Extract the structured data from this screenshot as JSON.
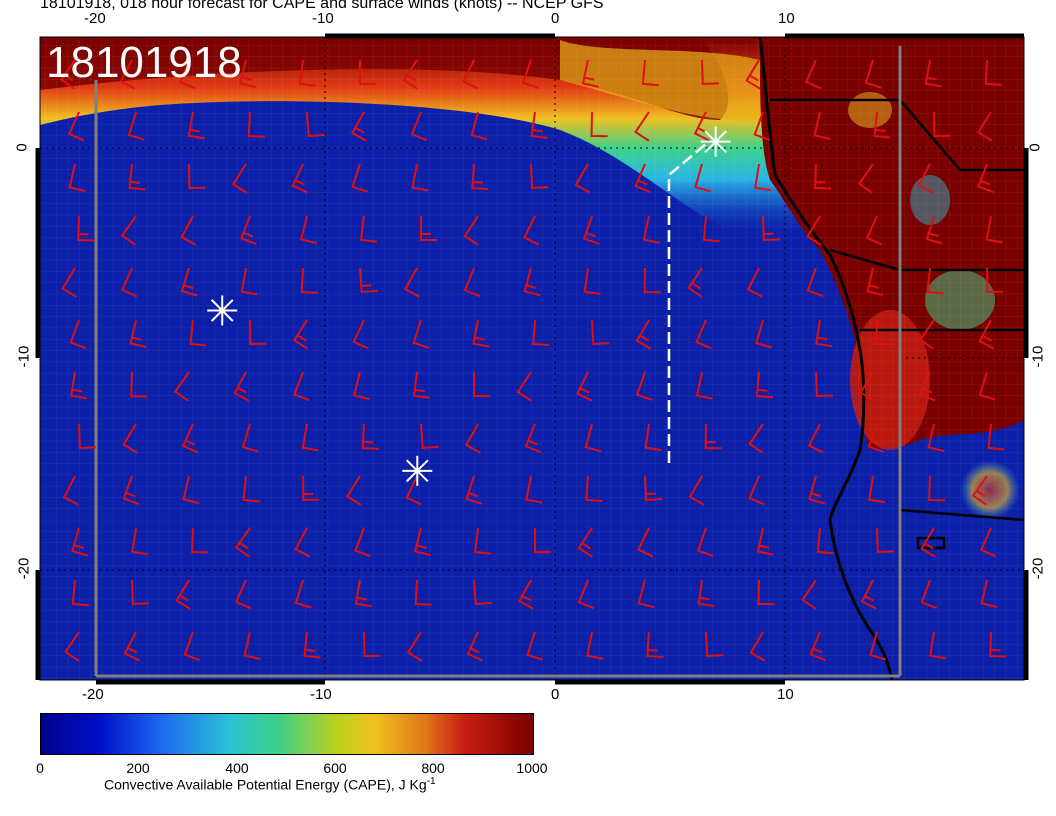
{
  "title": "18101918, 018 hour forecast for CAPE and surface winds (knots) -- NCEP GFS",
  "timestamp_label": "18101918",
  "x_ticks_top": [
    "-20",
    "-10",
    "0",
    "10"
  ],
  "x_ticks_bottom": [
    "-20",
    "-10",
    "0",
    "10"
  ],
  "y_ticks_left": [
    "0",
    "-10",
    "-20"
  ],
  "y_ticks_right": [
    "0",
    "-10",
    "-20"
  ],
  "colorbar": {
    "ticks": [
      "0",
      "200",
      "400",
      "600",
      "800",
      "1000"
    ],
    "label": "Convective Available Potential Energy (CAPE), J Kg",
    "label_sup": "-1",
    "colors": [
      "#00008b",
      "#1e6cf0",
      "#29c1d6",
      "#b8d21e",
      "#e07818",
      "#7a0000"
    ]
  },
  "markers": [
    {
      "name": "star-marker-1",
      "lon": 7,
      "lat": 0.3
    },
    {
      "name": "star-marker-2",
      "lon": -14.5,
      "lat": -7.7
    },
    {
      "name": "star-marker-3",
      "lon": -6,
      "lat": -15.3
    }
  ],
  "wind_barb_color": "#e01010"
}
